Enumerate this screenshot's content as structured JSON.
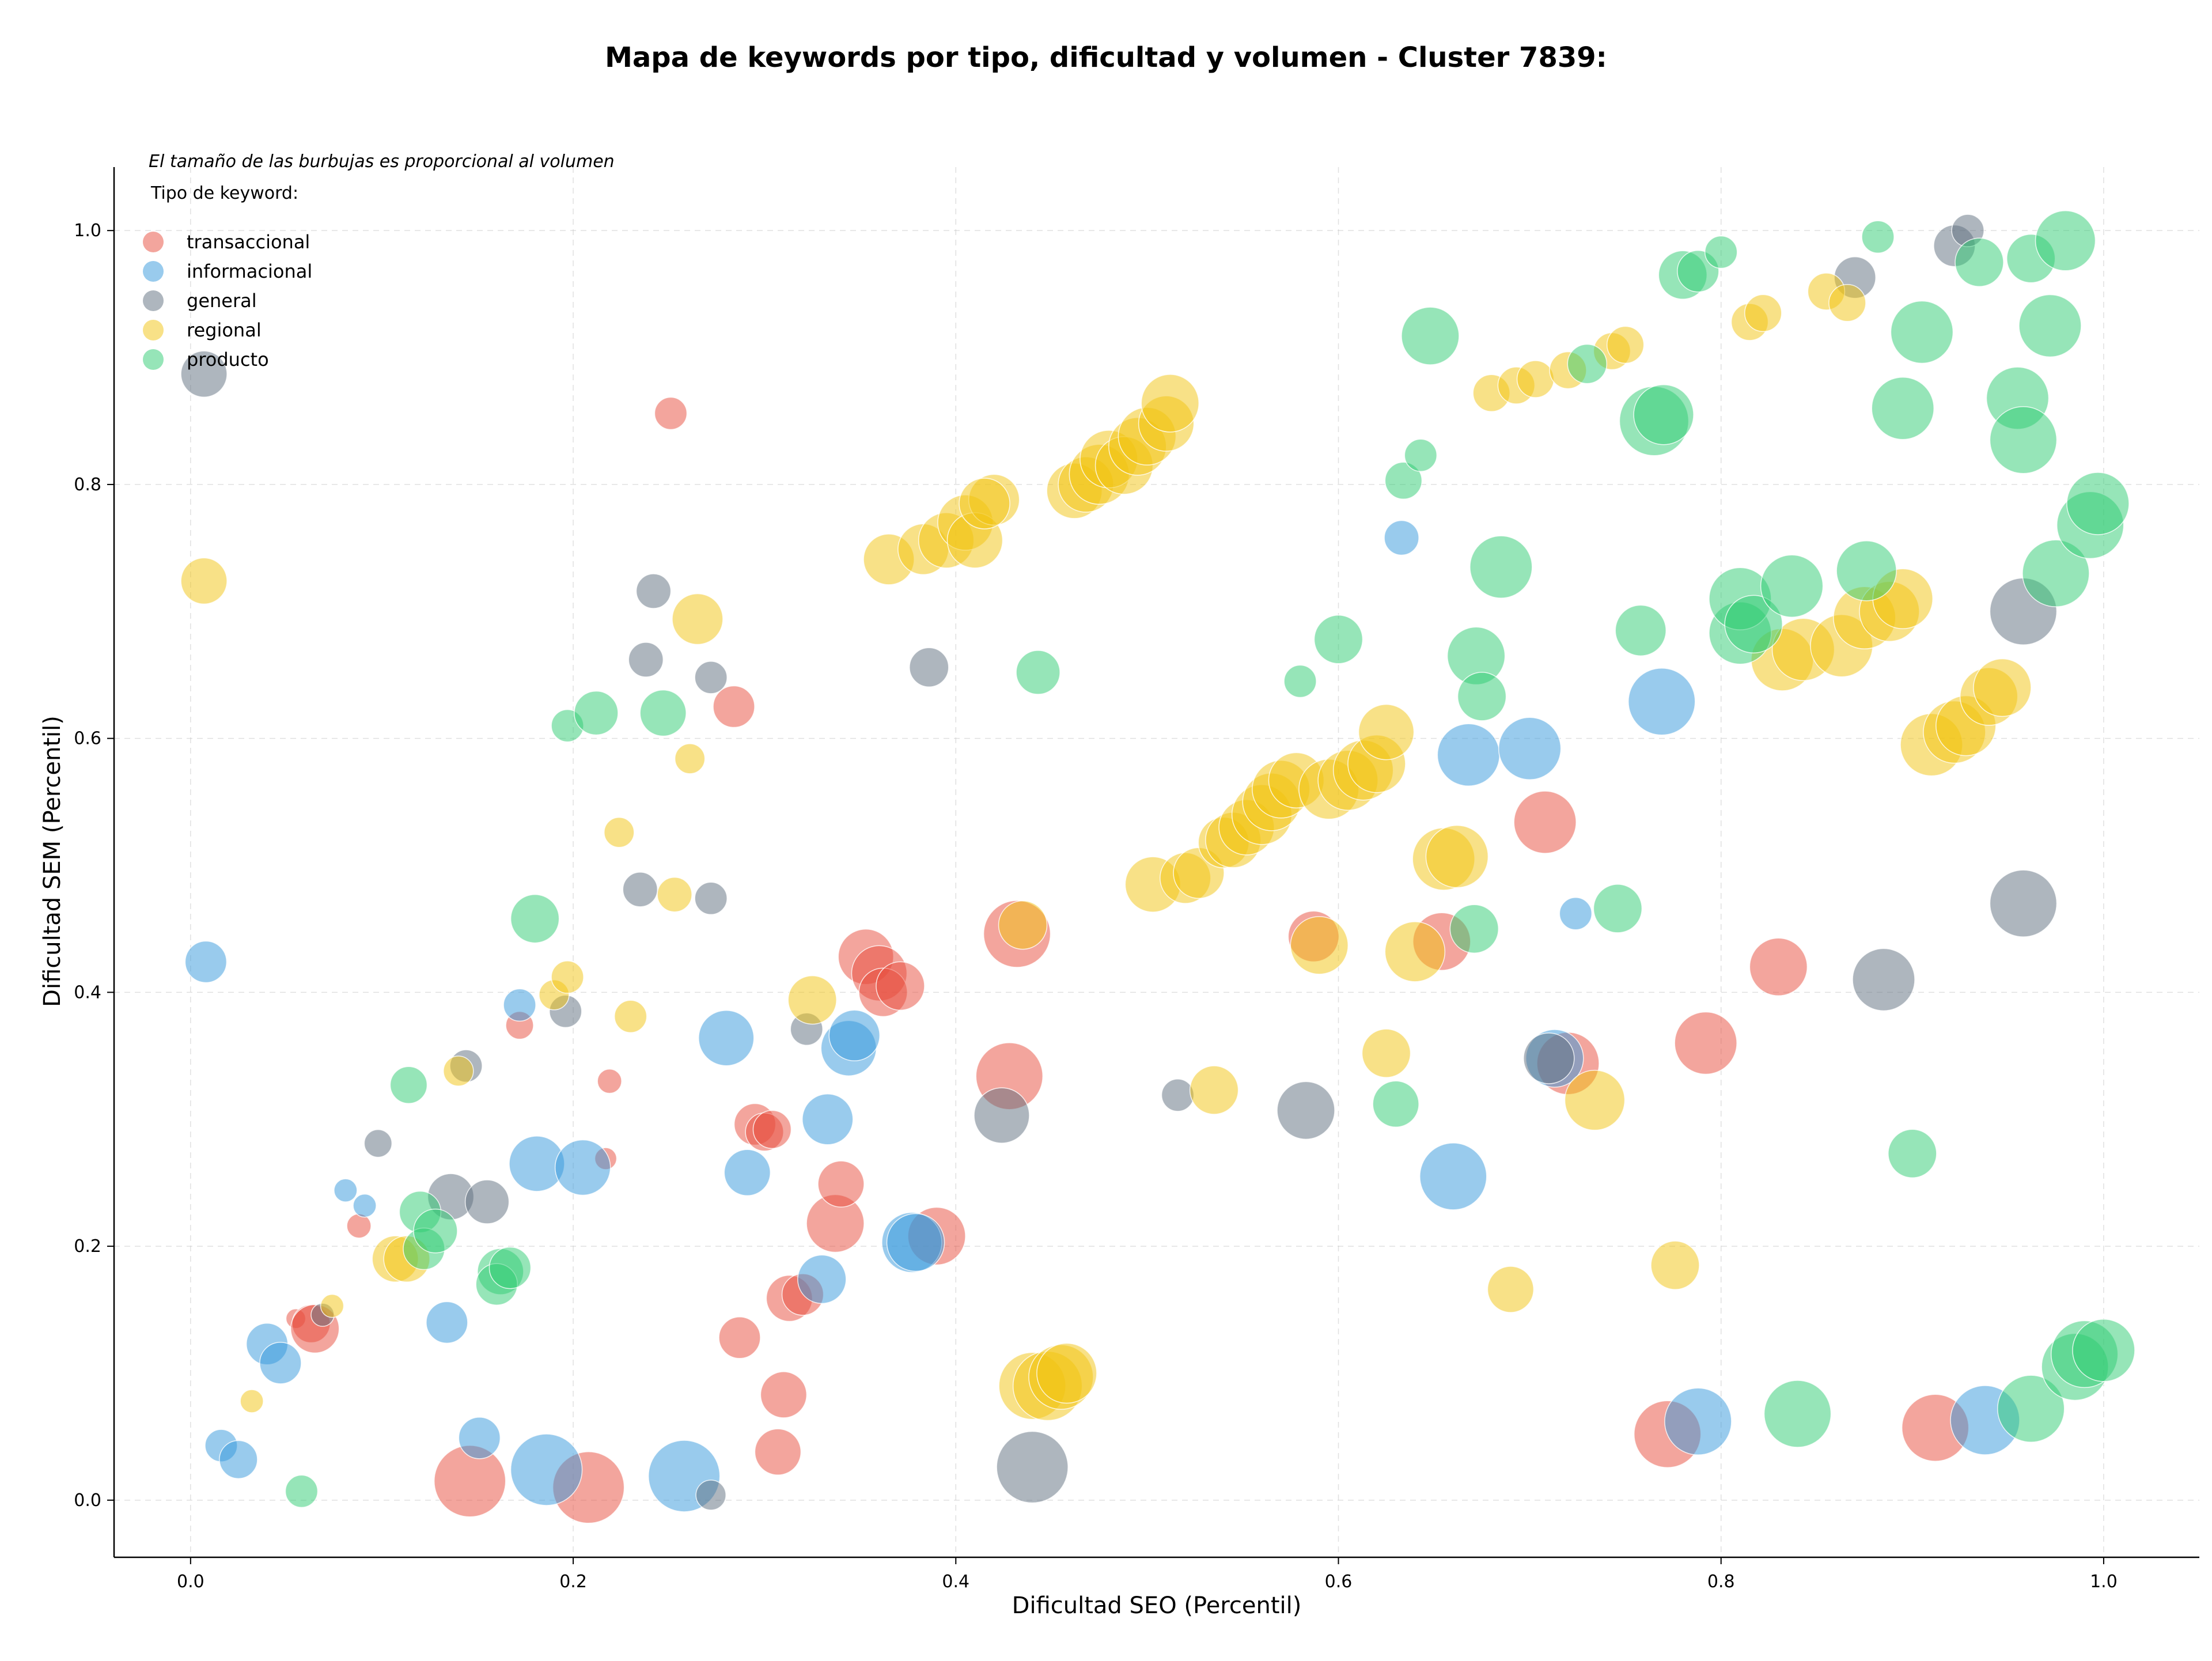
{
  "chart_data": {
    "type": "scatter",
    "title": "Mapa de keywords por tipo, dificultad y volumen - Cluster 7839:",
    "xlabel": "Dificultad SEO (Percentil)",
    "ylabel": "Dificultad SEM (Percentil)",
    "xlim": [
      -0.04,
      1.05
    ],
    "ylim": [
      -0.045,
      1.05
    ],
    "xticks": [
      "0.0",
      "0.2",
      "0.4",
      "0.6",
      "0.8",
      "1.0"
    ],
    "yticks": [
      "0.0",
      "0.2",
      "0.4",
      "0.6",
      "0.8",
      "1.0"
    ],
    "grid": true,
    "note": "El tamaño de las burbujas es proporcional al volumen",
    "legend_title": "Tipo de keyword:",
    "legend_position": "top-left",
    "series": [
      {
        "name": "transaccional",
        "color": "#e74c3c",
        "points": [
          [
            0.251,
            0.856,
            28
          ],
          [
            0.284,
            0.625,
            36
          ],
          [
            0.172,
            0.374,
            24
          ],
          [
            0.219,
            0.33,
            21
          ],
          [
            0.217,
            0.269,
            19
          ],
          [
            0.088,
            0.216,
            21
          ],
          [
            0.055,
            0.143,
            17
          ],
          [
            0.063,
            0.139,
            33
          ],
          [
            0.065,
            0.135,
            42
          ],
          [
            0.146,
            0.015,
            62
          ],
          [
            0.208,
            0.01,
            62
          ],
          [
            0.287,
            0.128,
            36
          ],
          [
            0.31,
            0.083,
            40
          ],
          [
            0.307,
            0.038,
            40
          ],
          [
            0.313,
            0.159,
            40
          ],
          [
            0.32,
            0.162,
            36
          ],
          [
            0.337,
            0.218,
            50
          ],
          [
            0.34,
            0.249,
            40
          ],
          [
            0.295,
            0.296,
            36
          ],
          [
            0.3,
            0.29,
            33
          ],
          [
            0.304,
            0.292,
            33
          ],
          [
            0.353,
            0.428,
            48
          ],
          [
            0.36,
            0.415,
            48
          ],
          [
            0.362,
            0.4,
            42
          ],
          [
            0.371,
            0.405,
            42
          ],
          [
            0.39,
            0.208,
            50
          ],
          [
            0.432,
            0.446,
            58
          ],
          [
            0.428,
            0.334,
            58
          ],
          [
            0.587,
            0.444,
            44
          ],
          [
            0.654,
            0.44,
            50
          ],
          [
            0.708,
            0.534,
            54
          ],
          [
            0.72,
            0.344,
            54
          ],
          [
            0.792,
            0.36,
            54
          ],
          [
            0.83,
            0.42,
            50
          ],
          [
            0.772,
            0.052,
            58
          ],
          [
            0.912,
            0.057,
            58
          ]
        ]
      },
      {
        "name": "informacional",
        "color": "#3498db",
        "points": [
          [
            0.008,
            0.424,
            36
          ],
          [
            0.081,
            0.244,
            20
          ],
          [
            0.091,
            0.232,
            20
          ],
          [
            0.04,
            0.123,
            36
          ],
          [
            0.047,
            0.108,
            36
          ],
          [
            0.016,
            0.043,
            28
          ],
          [
            0.025,
            0.032,
            33
          ],
          [
            0.134,
            0.14,
            36
          ],
          [
            0.151,
            0.049,
            36
          ],
          [
            0.172,
            0.39,
            28
          ],
          [
            0.181,
            0.265,
            48
          ],
          [
            0.205,
            0.262,
            48
          ],
          [
            0.186,
            0.024,
            62
          ],
          [
            0.258,
            0.019,
            62
          ],
          [
            0.28,
            0.364,
            48
          ],
          [
            0.291,
            0.258,
            40
          ],
          [
            0.33,
            0.174,
            42
          ],
          [
            0.333,
            0.3,
            44
          ],
          [
            0.344,
            0.356,
            48
          ],
          [
            0.347,
            0.366,
            44
          ],
          [
            0.377,
            0.203,
            52
          ],
          [
            0.379,
            0.203,
            50
          ],
          [
            0.633,
            0.758,
            30
          ],
          [
            0.668,
            0.587,
            54
          ],
          [
            0.7,
            0.592,
            54
          ],
          [
            0.66,
            0.255,
            58
          ],
          [
            0.713,
            0.348,
            50
          ],
          [
            0.724,
            0.462,
            28
          ],
          [
            0.769,
            0.629,
            58
          ],
          [
            0.788,
            0.062,
            58
          ],
          [
            0.938,
            0.063,
            60
          ]
        ]
      },
      {
        "name": "general",
        "color": "#5d6d7e",
        "points": [
          [
            0.007,
            0.887,
            40
          ],
          [
            0.242,
            0.716,
            30
          ],
          [
            0.238,
            0.662,
            30
          ],
          [
            0.272,
            0.648,
            28
          ],
          [
            0.386,
            0.656,
            34
          ],
          [
            0.235,
            0.481,
            30
          ],
          [
            0.272,
            0.474,
            28
          ],
          [
            0.196,
            0.385,
            28
          ],
          [
            0.144,
            0.342,
            28
          ],
          [
            0.098,
            0.281,
            24
          ],
          [
            0.136,
            0.239,
            40
          ],
          [
            0.155,
            0.235,
            38
          ],
          [
            0.322,
            0.371,
            28
          ],
          [
            0.424,
            0.303,
            48
          ],
          [
            0.272,
            0.004,
            26
          ],
          [
            0.44,
            0.026,
            62
          ],
          [
            0.516,
            0.319,
            28
          ],
          [
            0.583,
            0.307,
            50
          ],
          [
            0.71,
            0.348,
            44
          ],
          [
            0.885,
            0.41,
            54
          ],
          [
            0.958,
            0.47,
            58
          ],
          [
            0.958,
            0.7,
            58
          ],
          [
            0.87,
            0.963,
            36
          ],
          [
            0.922,
            0.988,
            36
          ],
          [
            0.929,
            1.0,
            28
          ],
          [
            0.069,
            0.146,
            20
          ]
        ]
      },
      {
        "name": "regional",
        "color": "#f1c40f",
        "points": [
          [
            0.007,
            0.724,
            40
          ],
          [
            0.032,
            0.078,
            20
          ],
          [
            0.074,
            0.153,
            20
          ],
          [
            0.107,
            0.19,
            40
          ],
          [
            0.113,
            0.19,
            40
          ],
          [
            0.14,
            0.338,
            26
          ],
          [
            0.19,
            0.398,
            26
          ],
          [
            0.197,
            0.412,
            28
          ],
          [
            0.23,
            0.381,
            28
          ],
          [
            0.224,
            0.526,
            26
          ],
          [
            0.253,
            0.477,
            30
          ],
          [
            0.261,
            0.584,
            26
          ],
          [
            0.265,
            0.694,
            44
          ],
          [
            0.325,
            0.394,
            42
          ],
          [
            0.365,
            0.741,
            44
          ],
          [
            0.383,
            0.749,
            44
          ],
          [
            0.395,
            0.756,
            48
          ],
          [
            0.405,
            0.77,
            48
          ],
          [
            0.41,
            0.756,
            48
          ],
          [
            0.42,
            0.788,
            44
          ],
          [
            0.415,
            0.785,
            44
          ],
          [
            0.435,
            0.453,
            42
          ],
          [
            0.44,
            0.09,
            58
          ],
          [
            0.448,
            0.09,
            60
          ],
          [
            0.455,
            0.097,
            56
          ],
          [
            0.458,
            0.1,
            52
          ],
          [
            0.462,
            0.795,
            48
          ],
          [
            0.468,
            0.8,
            48
          ],
          [
            0.475,
            0.808,
            52
          ],
          [
            0.48,
            0.82,
            50
          ],
          [
            0.488,
            0.815,
            50
          ],
          [
            0.495,
            0.83,
            50
          ],
          [
            0.5,
            0.838,
            50
          ],
          [
            0.51,
            0.848,
            48
          ],
          [
            0.512,
            0.864,
            50
          ],
          [
            0.503,
            0.485,
            48
          ],
          [
            0.52,
            0.49,
            44
          ],
          [
            0.527,
            0.494,
            44
          ],
          [
            0.535,
            0.323,
            42
          ],
          [
            0.54,
            0.518,
            44
          ],
          [
            0.545,
            0.52,
            48
          ],
          [
            0.552,
            0.53,
            48
          ],
          [
            0.56,
            0.54,
            52
          ],
          [
            0.565,
            0.55,
            50
          ],
          [
            0.57,
            0.56,
            50
          ],
          [
            0.578,
            0.567,
            48
          ],
          [
            0.59,
            0.437,
            50
          ],
          [
            0.595,
            0.56,
            52
          ],
          [
            0.605,
            0.567,
            52
          ],
          [
            0.613,
            0.575,
            52
          ],
          [
            0.62,
            0.58,
            50
          ],
          [
            0.625,
            0.605,
            48
          ],
          [
            0.625,
            0.352,
            42
          ],
          [
            0.64,
            0.432,
            52
          ],
          [
            0.655,
            0.505,
            54
          ],
          [
            0.662,
            0.507,
            54
          ],
          [
            0.68,
            0.872,
            32
          ],
          [
            0.69,
            0.166,
            40
          ],
          [
            0.693,
            0.878,
            32
          ],
          [
            0.703,
            0.883,
            32
          ],
          [
            0.72,
            0.89,
            32
          ],
          [
            0.734,
            0.315,
            52
          ],
          [
            0.743,
            0.905,
            32
          ],
          [
            0.75,
            0.91,
            32
          ],
          [
            0.776,
            0.185,
            42
          ],
          [
            0.815,
            0.928,
            32
          ],
          [
            0.822,
            0.935,
            32
          ],
          [
            0.855,
            0.952,
            32
          ],
          [
            0.866,
            0.943,
            32
          ],
          [
            0.832,
            0.662,
            54
          ],
          [
            0.843,
            0.67,
            54
          ],
          [
            0.863,
            0.673,
            54
          ],
          [
            0.875,
            0.695,
            54
          ],
          [
            0.888,
            0.7,
            52
          ],
          [
            0.895,
            0.71,
            52
          ],
          [
            0.91,
            0.595,
            54
          ],
          [
            0.922,
            0.605,
            54
          ],
          [
            0.928,
            0.61,
            52
          ],
          [
            0.94,
            0.633,
            50
          ],
          [
            0.947,
            0.64,
            50
          ]
        ]
      },
      {
        "name": "producto",
        "color": "#2ecc71",
        "points": [
          [
            0.058,
            0.007,
            28
          ],
          [
            0.114,
            0.327,
            32
          ],
          [
            0.12,
            0.227,
            36
          ],
          [
            0.122,
            0.198,
            36
          ],
          [
            0.128,
            0.212,
            38
          ],
          [
            0.162,
            0.18,
            40
          ],
          [
            0.16,
            0.17,
            36
          ],
          [
            0.167,
            0.183,
            36
          ],
          [
            0.18,
            0.458,
            42
          ],
          [
            0.197,
            0.61,
            28
          ],
          [
            0.212,
            0.62,
            38
          ],
          [
            0.247,
            0.62,
            40
          ],
          [
            0.443,
            0.652,
            38
          ],
          [
            0.58,
            0.645,
            28
          ],
          [
            0.6,
            0.678,
            42
          ],
          [
            0.63,
            0.312,
            40
          ],
          [
            0.634,
            0.803,
            32
          ],
          [
            0.643,
            0.823,
            28
          ],
          [
            0.648,
            0.917,
            50
          ],
          [
            0.671,
            0.45,
            42
          ],
          [
            0.672,
            0.665,
            50
          ],
          [
            0.675,
            0.633,
            42
          ],
          [
            0.685,
            0.735,
            54
          ],
          [
            0.73,
            0.895,
            34
          ],
          [
            0.746,
            0.466,
            42
          ],
          [
            0.758,
            0.685,
            44
          ],
          [
            0.765,
            0.85,
            60
          ],
          [
            0.77,
            0.855,
            52
          ],
          [
            0.78,
            0.965,
            42
          ],
          [
            0.788,
            0.968,
            36
          ],
          [
            0.8,
            0.983,
            28
          ],
          [
            0.81,
            0.683,
            54
          ],
          [
            0.81,
            0.71,
            54
          ],
          [
            0.817,
            0.69,
            50
          ],
          [
            0.84,
            0.068,
            58
          ],
          [
            0.837,
            0.72,
            54
          ],
          [
            0.876,
            0.732,
            52
          ],
          [
            0.882,
            0.995,
            28
          ],
          [
            0.895,
            0.86,
            54
          ],
          [
            0.9,
            0.273,
            42
          ],
          [
            0.905,
            0.92,
            54
          ],
          [
            0.935,
            0.975,
            42
          ],
          [
            0.955,
            0.868,
            54
          ],
          [
            0.958,
            0.835,
            58
          ],
          [
            0.962,
            0.072,
            58
          ],
          [
            0.962,
            0.978,
            42
          ],
          [
            0.972,
            0.925,
            54
          ],
          [
            0.975,
            0.73,
            58
          ],
          [
            0.98,
            0.992,
            52
          ],
          [
            0.985,
            0.105,
            58
          ],
          [
            0.99,
            0.115,
            58
          ],
          [
            0.993,
            0.768,
            58
          ],
          [
            0.997,
            0.785,
            54
          ],
          [
            1.0,
            0.118,
            54
          ]
        ]
      }
    ]
  }
}
